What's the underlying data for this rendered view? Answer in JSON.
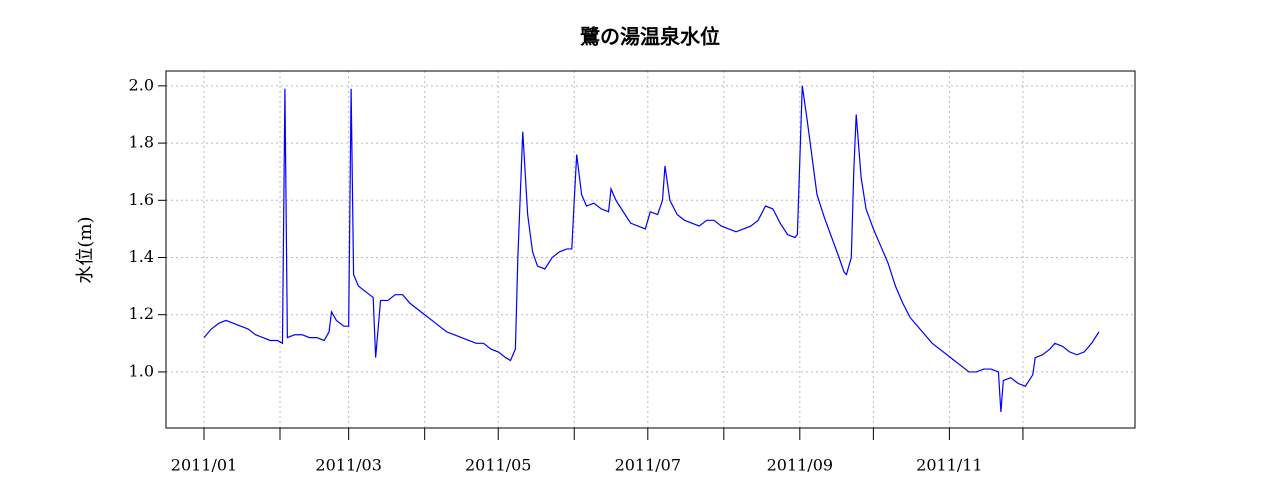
{
  "chart_data": {
    "type": "line",
    "title": "鷺の湯温泉水位",
    "y_label": "水位(m)",
    "x": [
      0,
      3,
      6,
      9,
      12,
      15,
      18,
      21,
      24,
      27,
      30,
      32,
      33,
      34,
      37,
      40,
      43,
      46,
      49,
      51,
      52,
      54,
      57,
      59,
      60,
      61,
      63,
      66,
      69,
      70,
      72,
      75,
      78,
      81,
      84,
      87,
      90,
      93,
      96,
      99,
      102,
      105,
      108,
      111,
      114,
      117,
      120,
      123,
      125,
      127,
      128,
      130,
      132,
      134,
      136,
      139,
      142,
      145,
      148,
      150,
      151,
      152,
      154,
      156,
      159,
      162,
      165,
      166,
      168,
      171,
      174,
      177,
      180,
      182,
      185,
      187,
      188,
      190,
      193,
      196,
      199,
      202,
      205,
      208,
      211,
      214,
      217,
      220,
      223,
      226,
      229,
      232,
      235,
      238,
      241,
      242,
      244,
      246,
      248,
      250,
      253,
      256,
      259,
      261,
      262,
      264,
      265,
      266,
      268,
      270,
      273,
      276,
      279,
      282,
      285,
      288,
      291,
      294,
      297,
      300,
      303,
      306,
      309,
      312,
      315,
      318,
      321,
      324,
      325,
      326,
      329,
      332,
      335,
      338,
      339,
      342,
      345,
      347,
      350,
      353,
      356,
      359,
      362,
      365
    ],
    "series": [
      {
        "name": "水位",
        "color": "#0000ff",
        "values": [
          1.12,
          1.15,
          1.17,
          1.18,
          1.17,
          1.16,
          1.15,
          1.13,
          1.12,
          1.11,
          1.11,
          1.1,
          1.99,
          1.12,
          1.13,
          1.13,
          1.12,
          1.12,
          1.11,
          1.14,
          1.21,
          1.18,
          1.16,
          1.16,
          1.99,
          1.34,
          1.3,
          1.28,
          1.26,
          1.05,
          1.25,
          1.25,
          1.27,
          1.27,
          1.24,
          1.22,
          1.2,
          1.18,
          1.16,
          1.14,
          1.13,
          1.12,
          1.11,
          1.1,
          1.1,
          1.08,
          1.07,
          1.05,
          1.04,
          1.08,
          1.4,
          1.84,
          1.55,
          1.42,
          1.37,
          1.36,
          1.4,
          1.42,
          1.43,
          1.43,
          1.6,
          1.76,
          1.62,
          1.58,
          1.59,
          1.57,
          1.56,
          1.64,
          1.6,
          1.56,
          1.52,
          1.51,
          1.5,
          1.56,
          1.55,
          1.6,
          1.72,
          1.6,
          1.55,
          1.53,
          1.52,
          1.51,
          1.53,
          1.53,
          1.51,
          1.5,
          1.49,
          1.5,
          1.51,
          1.53,
          1.58,
          1.57,
          1.52,
          1.48,
          1.47,
          1.48,
          2.0,
          1.88,
          1.75,
          1.62,
          1.54,
          1.47,
          1.4,
          1.35,
          1.34,
          1.4,
          1.7,
          1.9,
          1.68,
          1.57,
          1.5,
          1.44,
          1.38,
          1.3,
          1.24,
          1.19,
          1.16,
          1.13,
          1.1,
          1.08,
          1.06,
          1.04,
          1.02,
          1.0,
          1.0,
          1.01,
          1.01,
          1.0,
          0.86,
          0.97,
          0.98,
          0.96,
          0.95,
          0.99,
          1.05,
          1.06,
          1.08,
          1.1,
          1.09,
          1.07,
          1.06,
          1.07,
          1.1,
          1.14
        ]
      }
    ],
    "xlim": [
      -15.5,
      379.7
    ],
    "xticks": [
      {
        "value": 0,
        "label": "2011/01"
      },
      {
        "value": 59,
        "label": "2011/03"
      },
      {
        "value": 120,
        "label": "2011/05"
      },
      {
        "value": 181,
        "label": "2011/07"
      },
      {
        "value": 243,
        "label": "2011/09"
      },
      {
        "value": 304,
        "label": "2011/11"
      }
    ],
    "xminor_ticks": [
      31,
      90,
      151,
      212,
      273,
      334
    ],
    "ylim": [
      0.804,
      2.052
    ],
    "yticks": [
      {
        "value": 1.0,
        "label": "1.0"
      },
      {
        "value": 1.2,
        "label": "1.2"
      },
      {
        "value": 1.4,
        "label": "1.4"
      },
      {
        "value": 1.6,
        "label": "1.6"
      },
      {
        "value": 1.8,
        "label": "1.8"
      },
      {
        "value": 2.0,
        "label": "2.0"
      }
    ],
    "grid": true
  }
}
